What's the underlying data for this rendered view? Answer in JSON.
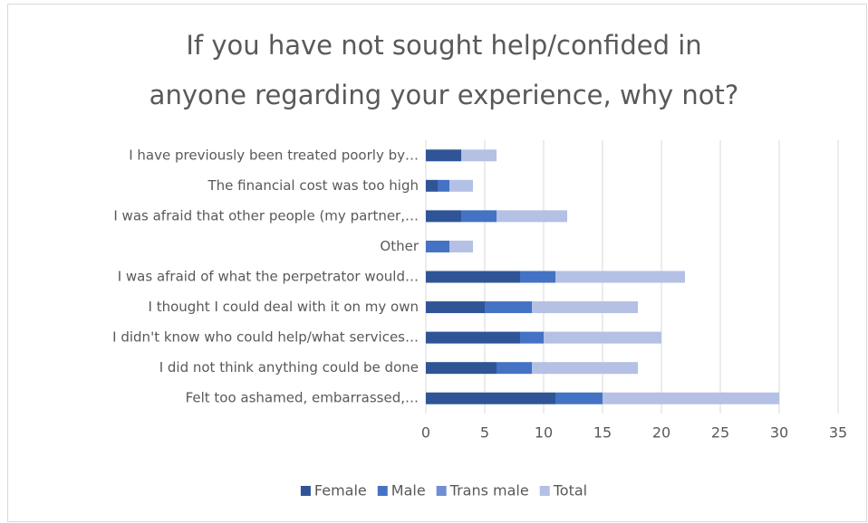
{
  "chart_data": {
    "type": "stacked_bar_horizontal",
    "title": [
      "If you have not sought help/confided in",
      "anyone regarding your experience, why not?"
    ],
    "categories": [
      "I have previously been treated poorly by…",
      "The financial cost was too high",
      "I was afraid that other people (my partner,…",
      "Other",
      "I was afraid of what the perpetrator would…",
      "I thought I could deal with it on my own",
      "I didn't know who could help/what services…",
      "I did not think anything could be done",
      "Felt too ashamed, embarrassed,…"
    ],
    "series": [
      {
        "name": "Female",
        "color": "#2f5597",
        "values": [
          3,
          1,
          3,
          0,
          8,
          5,
          8,
          6,
          11
        ]
      },
      {
        "name": "Male",
        "color": "#4472c4",
        "values": [
          0,
          1,
          3,
          2,
          3,
          4,
          2,
          3,
          4
        ]
      },
      {
        "name": "Trans male",
        "color": "#6f8fd2",
        "values": [
          0,
          0,
          0,
          0,
          0,
          0,
          0,
          0,
          0
        ]
      },
      {
        "name": "Total",
        "color": "#b4c0e4",
        "values": [
          3,
          2,
          6,
          2,
          11,
          9,
          10,
          9,
          15
        ]
      }
    ],
    "xlim": [
      0,
      35
    ],
    "xticks": [
      0,
      5,
      10,
      15,
      20,
      25,
      30,
      35
    ],
    "grid": true,
    "legend": "bottom"
  }
}
